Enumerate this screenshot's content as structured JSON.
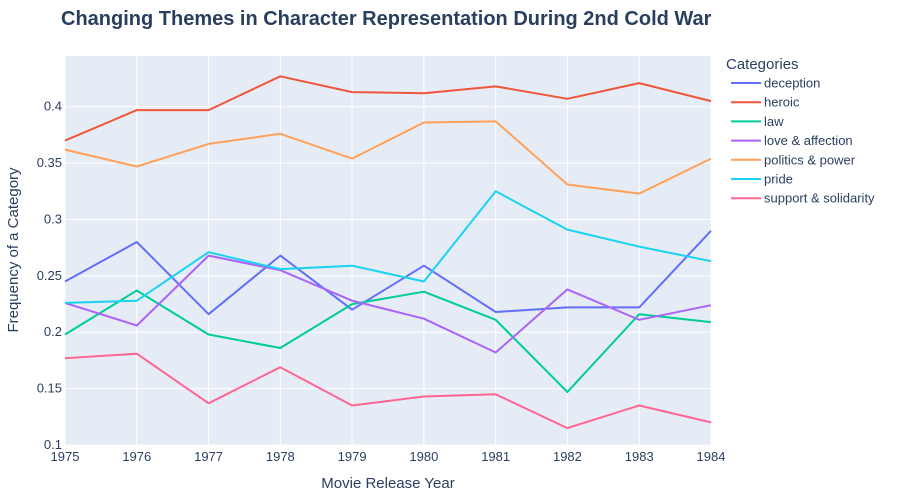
{
  "chart_data": {
    "type": "line",
    "title": "Changing Themes in Character Representation During 2nd Cold War",
    "xlabel": "Movie Release Year",
    "ylabel": "Frequency of a Category",
    "x": [
      1975,
      1976,
      1977,
      1978,
      1979,
      1980,
      1981,
      1982,
      1983,
      1984
    ],
    "xlim": [
      1975,
      1984
    ],
    "ylim": [
      0.1,
      0.445
    ],
    "yticks": [
      0.1,
      0.15,
      0.2,
      0.25,
      0.3,
      0.35,
      0.4
    ],
    "ytick_labels": [
      "0.1",
      "0.15",
      "0.2",
      "0.25",
      "0.3",
      "0.35",
      "0.4"
    ],
    "grid": true,
    "legend_title": "Categories",
    "legend_position": "right",
    "series": [
      {
        "name": "deception",
        "color": "#636efa",
        "values": [
          0.245,
          0.28,
          0.216,
          0.268,
          0.22,
          0.259,
          0.218,
          0.222,
          0.222,
          0.29
        ]
      },
      {
        "name": "heroic",
        "color": "#ef553b",
        "values": [
          0.37,
          0.397,
          0.397,
          0.427,
          0.413,
          0.412,
          0.418,
          0.407,
          0.421,
          0.405
        ]
      },
      {
        "name": "law",
        "color": "#00cc96",
        "values": [
          0.198,
          0.237,
          0.198,
          0.186,
          0.225,
          0.236,
          0.211,
          0.147,
          0.216,
          0.209
        ]
      },
      {
        "name": "love & affection",
        "color": "#ab63fa",
        "values": [
          0.226,
          0.206,
          0.268,
          0.255,
          0.228,
          0.212,
          0.182,
          0.238,
          0.211,
          0.224
        ]
      },
      {
        "name": "politics & power",
        "color": "#ffa15a",
        "values": [
          0.362,
          0.347,
          0.367,
          0.376,
          0.354,
          0.386,
          0.387,
          0.331,
          0.323,
          0.354
        ]
      },
      {
        "name": "pride",
        "color": "#19d3f3",
        "values": [
          0.226,
          0.228,
          0.271,
          0.256,
          0.259,
          0.245,
          0.325,
          0.291,
          0.276,
          0.263
        ]
      },
      {
        "name": "support & solidarity",
        "color": "#ff6692",
        "values": [
          0.177,
          0.181,
          0.137,
          0.169,
          0.135,
          0.143,
          0.145,
          0.115,
          0.135,
          0.12
        ]
      }
    ]
  }
}
